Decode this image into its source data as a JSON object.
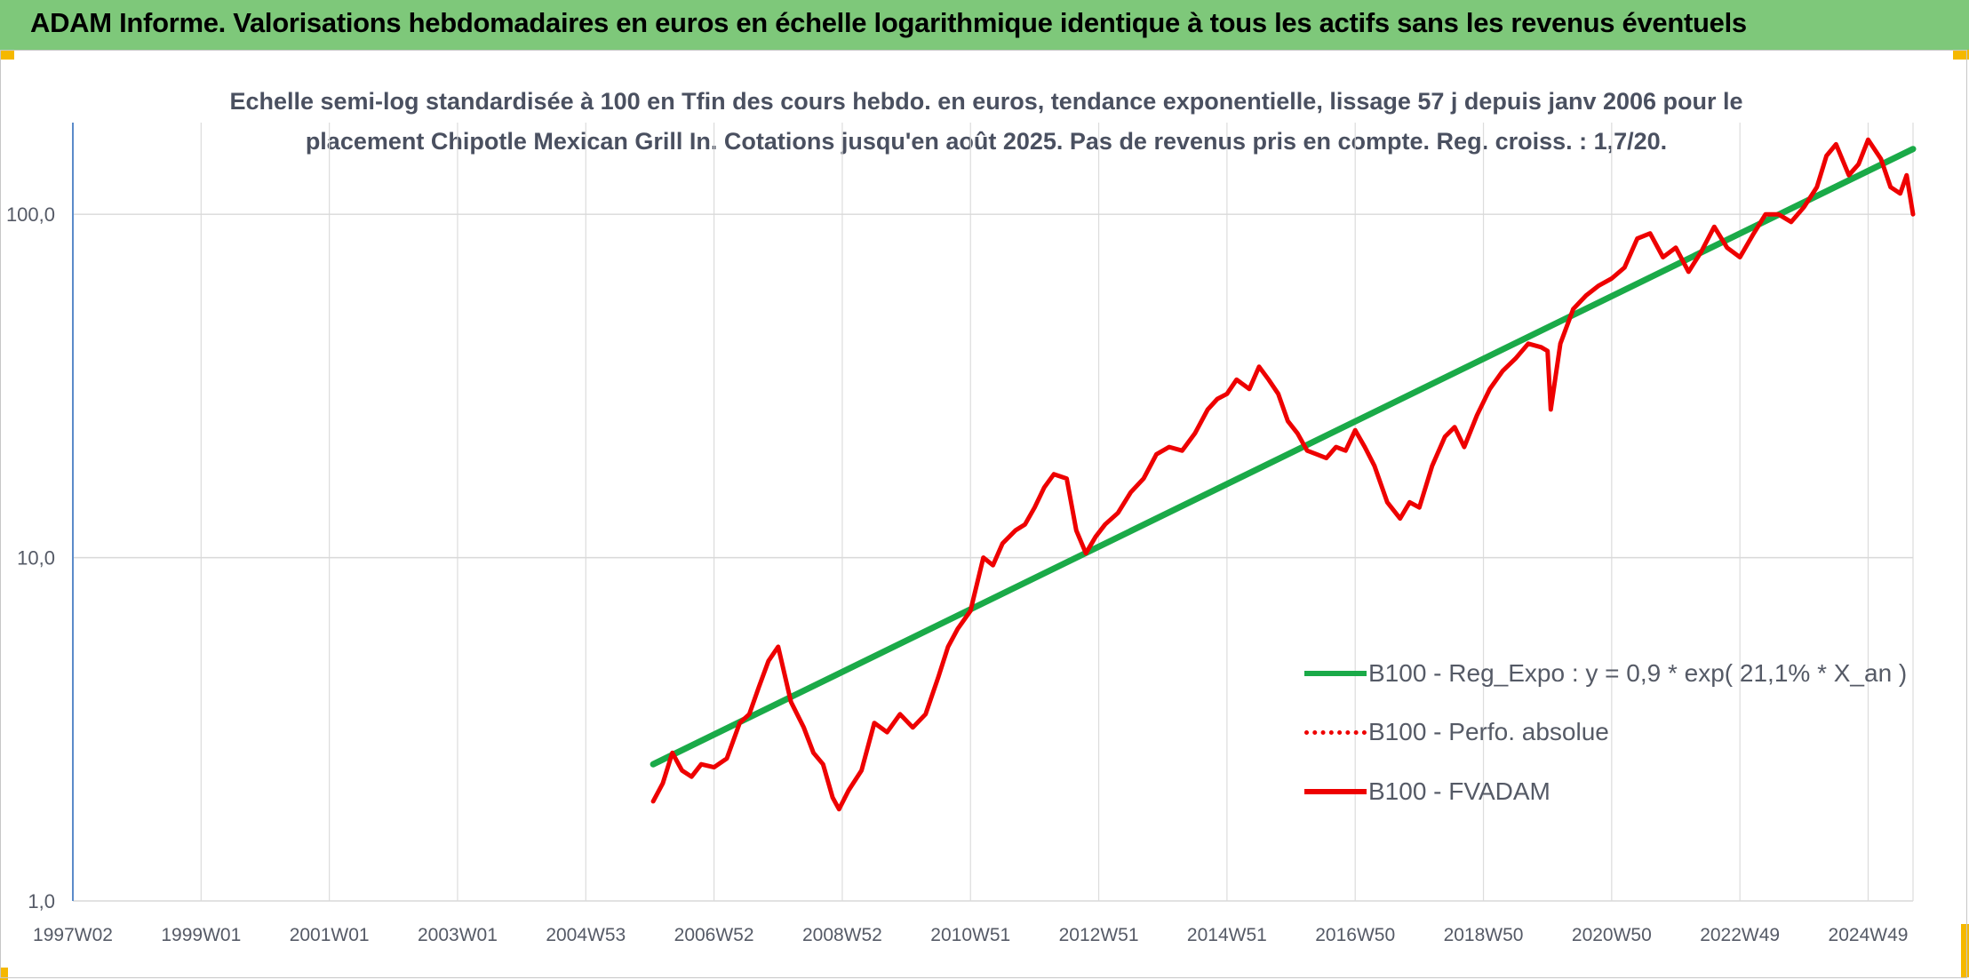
{
  "header": {
    "title": "ADAM Informe. Valorisations hebdomadaires en euros en échelle logarithmique identique à tous les actifs sans les revenus éventuels"
  },
  "chart_data": {
    "type": "line",
    "title_lines": [
      "Echelle semi-log standardisée à 100 en Tfin des cours hebdo. en euros, tendance exponentielle, lissage 57 j depuis janv 2006 pour le",
      "placement Chipotle Mexican Grill In. Cotations jusqu'en août 2025. Pas de revenus pris en compte. Reg. croiss. : 1,7/20."
    ],
    "y_scale": "log",
    "ylim": [
      1,
      185
    ],
    "y_ticks": [
      1,
      10,
      100
    ],
    "y_tick_labels": [
      "1,0",
      "10,0",
      "100,0"
    ],
    "xlim": [
      1997.0,
      2025.7
    ],
    "x_ticks": [
      1997.0,
      1999.0,
      2001.0,
      2003.0,
      2005.0,
      2007.0,
      2009.0,
      2011.0,
      2013.0,
      2015.0,
      2017.0,
      2019.0,
      2021.0,
      2023.0,
      2025.0
    ],
    "x_tick_labels": [
      "1997W02",
      "1999W01",
      "2001W01",
      "2003W01",
      "2004W53",
      "2006W52",
      "2008W52",
      "2010W51",
      "2012W51",
      "2014W51",
      "2016W50",
      "2018W50",
      "2020W50",
      "2022W49",
      "2024W49"
    ],
    "grid": true,
    "legend_position": "right",
    "colors": {
      "trend": "#1aaa48",
      "fvadam": "#ee0000",
      "perf": "#ee0000"
    },
    "series": [
      {
        "name": "B100 - Reg_Expo : y = 0,9 * exp( 21,1% *  X_an )",
        "style": "solid-green",
        "x": [
          2006.05,
          2025.7
        ],
        "y": [
          2.5,
          155
        ]
      },
      {
        "name": "B100 - Perfo. absolue",
        "style": "dotted-red",
        "x": [],
        "y": []
      },
      {
        "name": "B100 - FVADAM",
        "style": "solid-red",
        "x": [
          2006.05,
          2006.2,
          2006.35,
          2006.5,
          2006.65,
          2006.8,
          2007.0,
          2007.2,
          2007.4,
          2007.55,
          2007.7,
          2007.85,
          2008.0,
          2008.2,
          2008.4,
          2008.55,
          2008.7,
          2008.85,
          2008.95,
          2009.1,
          2009.3,
          2009.5,
          2009.7,
          2009.9,
          2010.1,
          2010.3,
          2010.5,
          2010.65,
          2010.8,
          2011.0,
          2011.2,
          2011.35,
          2011.5,
          2011.7,
          2011.85,
          2012.0,
          2012.15,
          2012.3,
          2012.5,
          2012.65,
          2012.8,
          2012.95,
          2013.1,
          2013.3,
          2013.5,
          2013.7,
          2013.9,
          2014.1,
          2014.3,
          2014.5,
          2014.7,
          2014.85,
          2015.0,
          2015.15,
          2015.35,
          2015.5,
          2015.65,
          2015.8,
          2015.95,
          2016.1,
          2016.25,
          2016.4,
          2016.55,
          2016.7,
          2016.85,
          2017.0,
          2017.15,
          2017.3,
          2017.5,
          2017.7,
          2017.85,
          2018.0,
          2018.2,
          2018.4,
          2018.55,
          2018.7,
          2018.9,
          2019.1,
          2019.3,
          2019.5,
          2019.7,
          2019.9,
          2020.0,
          2020.05,
          2020.2,
          2020.4,
          2020.6,
          2020.8,
          2021.0,
          2021.2,
          2021.4,
          2021.6,
          2021.8,
          2022.0,
          2022.2,
          2022.4,
          2022.6,
          2022.8,
          2023.0,
          2023.2,
          2023.4,
          2023.6,
          2023.8,
          2024.0,
          2024.2,
          2024.35,
          2024.5,
          2024.7,
          2024.85,
          2025.0,
          2025.2,
          2025.35,
          2025.5,
          2025.6,
          2025.7
        ],
        "y": [
          1.95,
          2.2,
          2.7,
          2.4,
          2.3,
          2.5,
          2.45,
          2.6,
          3.3,
          3.5,
          4.2,
          5.0,
          5.5,
          3.8,
          3.2,
          2.7,
          2.5,
          2.0,
          1.85,
          2.1,
          2.4,
          3.3,
          3.1,
          3.5,
          3.2,
          3.5,
          4.5,
          5.5,
          6.2,
          7.0,
          10.0,
          9.5,
          11.0,
          12.0,
          12.5,
          14.0,
          16.0,
          17.5,
          17.0,
          12.0,
          10.3,
          11.5,
          12.5,
          13.5,
          15.5,
          17.0,
          20.0,
          21.0,
          20.5,
          23.0,
          27.0,
          29.0,
          30.0,
          33.0,
          31.0,
          36.0,
          33.0,
          30.0,
          25.0,
          23.0,
          20.5,
          20.0,
          19.5,
          21.0,
          20.5,
          23.5,
          21.0,
          18.5,
          14.5,
          13.0,
          14.5,
          14.0,
          18.5,
          22.5,
          24.0,
          21.0,
          26.0,
          31.0,
          35.0,
          38.0,
          42.0,
          41.0,
          40.0,
          27.0,
          42.0,
          53.0,
          58.0,
          62.0,
          65.0,
          70.0,
          85.0,
          88.0,
          75.0,
          80.0,
          68.0,
          78.0,
          92.0,
          80.0,
          75.0,
          87.0,
          100.0,
          100.0,
          95.0,
          105.0,
          120.0,
          148.0,
          160.0,
          130.0,
          140.0,
          165.0,
          145.0,
          120.0,
          115.0,
          130.0,
          100.0
        ]
      }
    ]
  }
}
